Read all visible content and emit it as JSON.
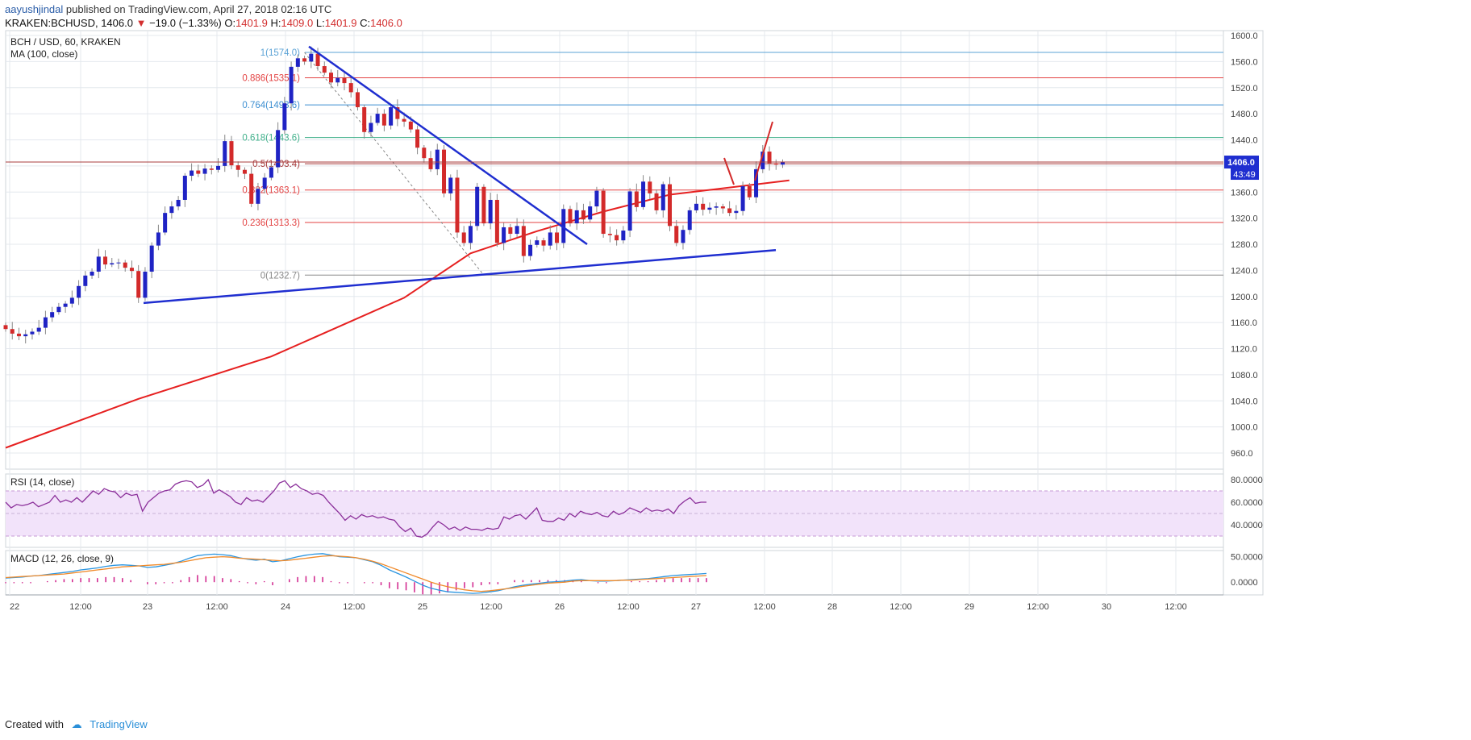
{
  "header": {
    "author": "aayushjindal",
    "published_text": "published on TradingView.com, April 27, 2018 02:16 UTC",
    "symbol": "KRAKEN:BCHUSD,",
    "last": "1406.0",
    "change": "−19.0 (−1.33%)",
    "o_label": "O:",
    "o_val": "1401.9",
    "h_label": "H:",
    "h_val": "1409.0",
    "l_label": "L:",
    "l_val": "1401.9",
    "c_label": "C:",
    "c_val": "1406.0"
  },
  "footer": {
    "created_with": "Created with",
    "brand": "TradingView"
  },
  "colors": {
    "up": "#1f23c4",
    "down": "#d32a2a",
    "ma": "#e62020",
    "trend": "#1f2ed0",
    "rsi": "#8b2f9a",
    "rsi_band": "#f2e3fa",
    "macd": "#2b95e0",
    "signal": "#f08a2a",
    "hist": "#d0208a",
    "grid": "#e4e8ee"
  },
  "chart_data": [
    {
      "type": "candlestick",
      "title": "BCH / USD, 60, KRAKEN",
      "overlay_label": "MA (100, close)",
      "ylim": [
        928,
        1610
      ],
      "y_ticks": [
        960,
        1000,
        1040,
        1080,
        1120,
        1160,
        1200,
        1240,
        1280,
        1320,
        1360,
        1400,
        1440,
        1480,
        1520,
        1560,
        1600
      ],
      "x_ticks": [
        "22",
        "12:00",
        "23",
        "12:00",
        "24",
        "12:00",
        "25",
        "12:00",
        "26",
        "12:00",
        "27",
        "12:00",
        "28",
        "12:00",
        "29",
        "12:00",
        "30",
        "12:00"
      ],
      "last_price": "1406.0",
      "countdown": "43:49",
      "fib_levels": [
        {
          "label": "1(1574.0)",
          "price": 1574.0,
          "color": "#5ba3d6"
        },
        {
          "label": "0.886(1535.1)",
          "price": 1535.1,
          "color": "#e34242"
        },
        {
          "label": "0.764(1493.6)",
          "price": 1493.6,
          "color": "#3d8fd1"
        },
        {
          "label": "0.618(1443.6)",
          "price": 1443.6,
          "color": "#3fb08a"
        },
        {
          "label": "0.5(1403.4)",
          "price": 1403.4,
          "color": "#a83c3c"
        },
        {
          "label": "0.382(1363.1)",
          "price": 1363.1,
          "color": "#e34242"
        },
        {
          "label": "0.236(1313.3)",
          "price": 1313.3,
          "color": "#e34242"
        },
        {
          "label": "0(1232.7)",
          "price": 1232.7,
          "color": "#888888"
        }
      ],
      "close": [
        1150,
        1143,
        1139,
        1142,
        1146,
        1152,
        1168,
        1176,
        1184,
        1189,
        1198,
        1216,
        1232,
        1238,
        1261,
        1249,
        1251,
        1252,
        1244,
        1239,
        1198,
        1238,
        1278,
        1298,
        1328,
        1338,
        1348,
        1385,
        1393,
        1388,
        1396,
        1394,
        1400,
        1438,
        1401,
        1394,
        1388,
        1342,
        1365,
        1382,
        1398,
        1455,
        1496,
        1552,
        1565,
        1560,
        1572,
        1553,
        1543,
        1528,
        1535,
        1527,
        1513,
        1490,
        1452,
        1466,
        1480,
        1462,
        1490,
        1472,
        1468,
        1456,
        1428,
        1412,
        1395,
        1425,
        1358,
        1382,
        1298,
        1282,
        1308,
        1368,
        1312,
        1348,
        1282,
        1306,
        1296,
        1308,
        1262,
        1279,
        1286,
        1278,
        1298,
        1282,
        1334,
        1312,
        1332,
        1318,
        1338,
        1362,
        1296,
        1294,
        1286,
        1301,
        1361,
        1337,
        1376,
        1358,
        1332,
        1372,
        1308,
        1282,
        1302,
        1332,
        1342,
        1333,
        1336,
        1338,
        1335,
        1328,
        1331,
        1369,
        1352,
        1395,
        1422,
        1404,
        1402,
        1406
      ],
      "ma100_anchor": [
        {
          "i": 0,
          "v": 968
        },
        {
          "i": 20,
          "v": 1043
        },
        {
          "i": 40,
          "v": 1108
        },
        {
          "i": 60,
          "v": 1198
        },
        {
          "i": 70,
          "v": 1266
        },
        {
          "i": 80,
          "v": 1300
        },
        {
          "i": 90,
          "v": 1330
        },
        {
          "i": 100,
          "v": 1356
        },
        {
          "i": 118,
          "v": 1378
        }
      ],
      "trendlines": [
        {
          "name": "support",
          "from": {
            "t": "Apr 22 22:00",
            "v": 1190
          },
          "to": {
            "t": "Apr 27 15:00",
            "v": 1271
          }
        },
        {
          "name": "resistance",
          "from": {
            "t": "Apr 24 03:00",
            "v": 1583
          },
          "to": {
            "t": "Apr 26 06:00",
            "v": 1280
          }
        }
      ]
    },
    {
      "type": "line",
      "title": "RSI (14, close)",
      "ylim": [
        20,
        85
      ],
      "y_ticks": [
        "80.0000",
        "60.0000",
        "40.0000"
      ],
      "bands": [
        30,
        70
      ],
      "values": [
        60,
        55,
        58,
        57,
        58,
        60,
        56,
        58,
        60,
        66,
        60,
        62,
        60,
        64,
        60,
        65,
        70,
        67,
        72,
        70,
        69,
        64,
        68,
        66,
        67,
        52,
        60,
        64,
        68,
        70,
        71,
        76,
        78,
        79,
        78,
        73,
        75,
        80,
        68,
        71,
        68,
        65,
        60,
        58,
        64,
        61,
        62,
        60,
        65,
        70,
        77,
        79,
        73,
        76,
        72,
        70,
        67,
        68,
        66,
        60,
        55,
        50,
        44,
        48,
        45,
        49,
        47,
        48,
        46,
        47,
        45,
        44,
        38,
        34,
        37,
        30,
        29,
        32,
        38,
        43,
        40,
        36,
        38,
        35,
        38,
        36,
        36,
        35,
        37,
        36,
        37,
        47,
        45,
        48,
        49,
        45,
        50,
        55,
        44,
        43,
        43,
        46,
        44,
        50,
        47,
        52,
        50,
        49,
        51,
        48,
        47,
        52,
        49,
        51,
        55,
        53,
        51,
        55,
        52,
        53,
        52,
        54,
        50,
        57,
        61,
        64,
        59,
        60,
        60
      ]
    },
    {
      "type": "line",
      "title": "MACD (12, 26, close, 9)",
      "ylim": [
        -25,
        62
      ],
      "y_ticks": [
        "50.0000",
        "0.0000"
      ],
      "series": [
        {
          "values": [
            8,
            9,
            10,
            12,
            13,
            15,
            17,
            19,
            21,
            24,
            26,
            28,
            31,
            33,
            34,
            33,
            32,
            29,
            30,
            33,
            36,
            41,
            47,
            52,
            54,
            55,
            54,
            52,
            48,
            45,
            43,
            45,
            40,
            42,
            46,
            50,
            53,
            55,
            56,
            53,
            50,
            49,
            48,
            44,
            40,
            33,
            24,
            17,
            10,
            2,
            -6,
            -12,
            -16,
            -19,
            -20,
            -21,
            -22,
            -21,
            -19,
            -17,
            -13,
            -9,
            -6,
            -4,
            -2,
            0,
            1,
            2,
            4,
            5,
            3,
            2,
            2,
            3,
            4,
            5,
            6,
            7,
            9,
            11,
            13,
            14,
            15,
            16,
            17
          ]
        },
        {
          "values": [
            9,
            10,
            11,
            12,
            13,
            14,
            15,
            16,
            18,
            20,
            22,
            24,
            26,
            28,
            30,
            31,
            32,
            33,
            34,
            35,
            37,
            39,
            42,
            45,
            48,
            49,
            50,
            49,
            47,
            46,
            45,
            44,
            43,
            42,
            43,
            45,
            47,
            49,
            51,
            52,
            51,
            50,
            48,
            45,
            41,
            36,
            30,
            24,
            18,
            12,
            6,
            0,
            -5,
            -9,
            -12,
            -15,
            -17,
            -18,
            -17,
            -15,
            -13,
            -11,
            -8,
            -6,
            -4,
            -2,
            -1,
            0,
            2,
            3,
            3,
            3,
            3,
            3,
            4,
            4,
            5,
            6,
            7,
            8,
            9,
            10,
            11,
            12,
            13
          ]
        }
      ],
      "histogram": [
        -1,
        -1,
        -1,
        -1,
        0,
        1,
        2,
        3,
        3,
        4,
        4,
        4,
        5,
        5,
        4,
        2,
        0,
        -2,
        -2,
        -1,
        -1,
        2,
        5,
        7,
        6,
        6,
        4,
        3,
        1,
        -1,
        -2,
        1,
        -3,
        0,
        3,
        5,
        6,
        6,
        5,
        1,
        -1,
        -1,
        0,
        -1,
        -1,
        -3,
        -6,
        -7,
        -8,
        -10,
        -12,
        -12,
        -11,
        -10,
        -8,
        -6,
        -5,
        -3,
        -2,
        -2,
        0,
        2,
        2,
        2,
        2,
        2,
        2,
        2,
        2,
        2,
        0,
        -1,
        -1,
        0,
        0,
        1,
        1,
        1,
        2,
        3,
        4,
        4,
        4,
        4,
        4
      ]
    }
  ]
}
